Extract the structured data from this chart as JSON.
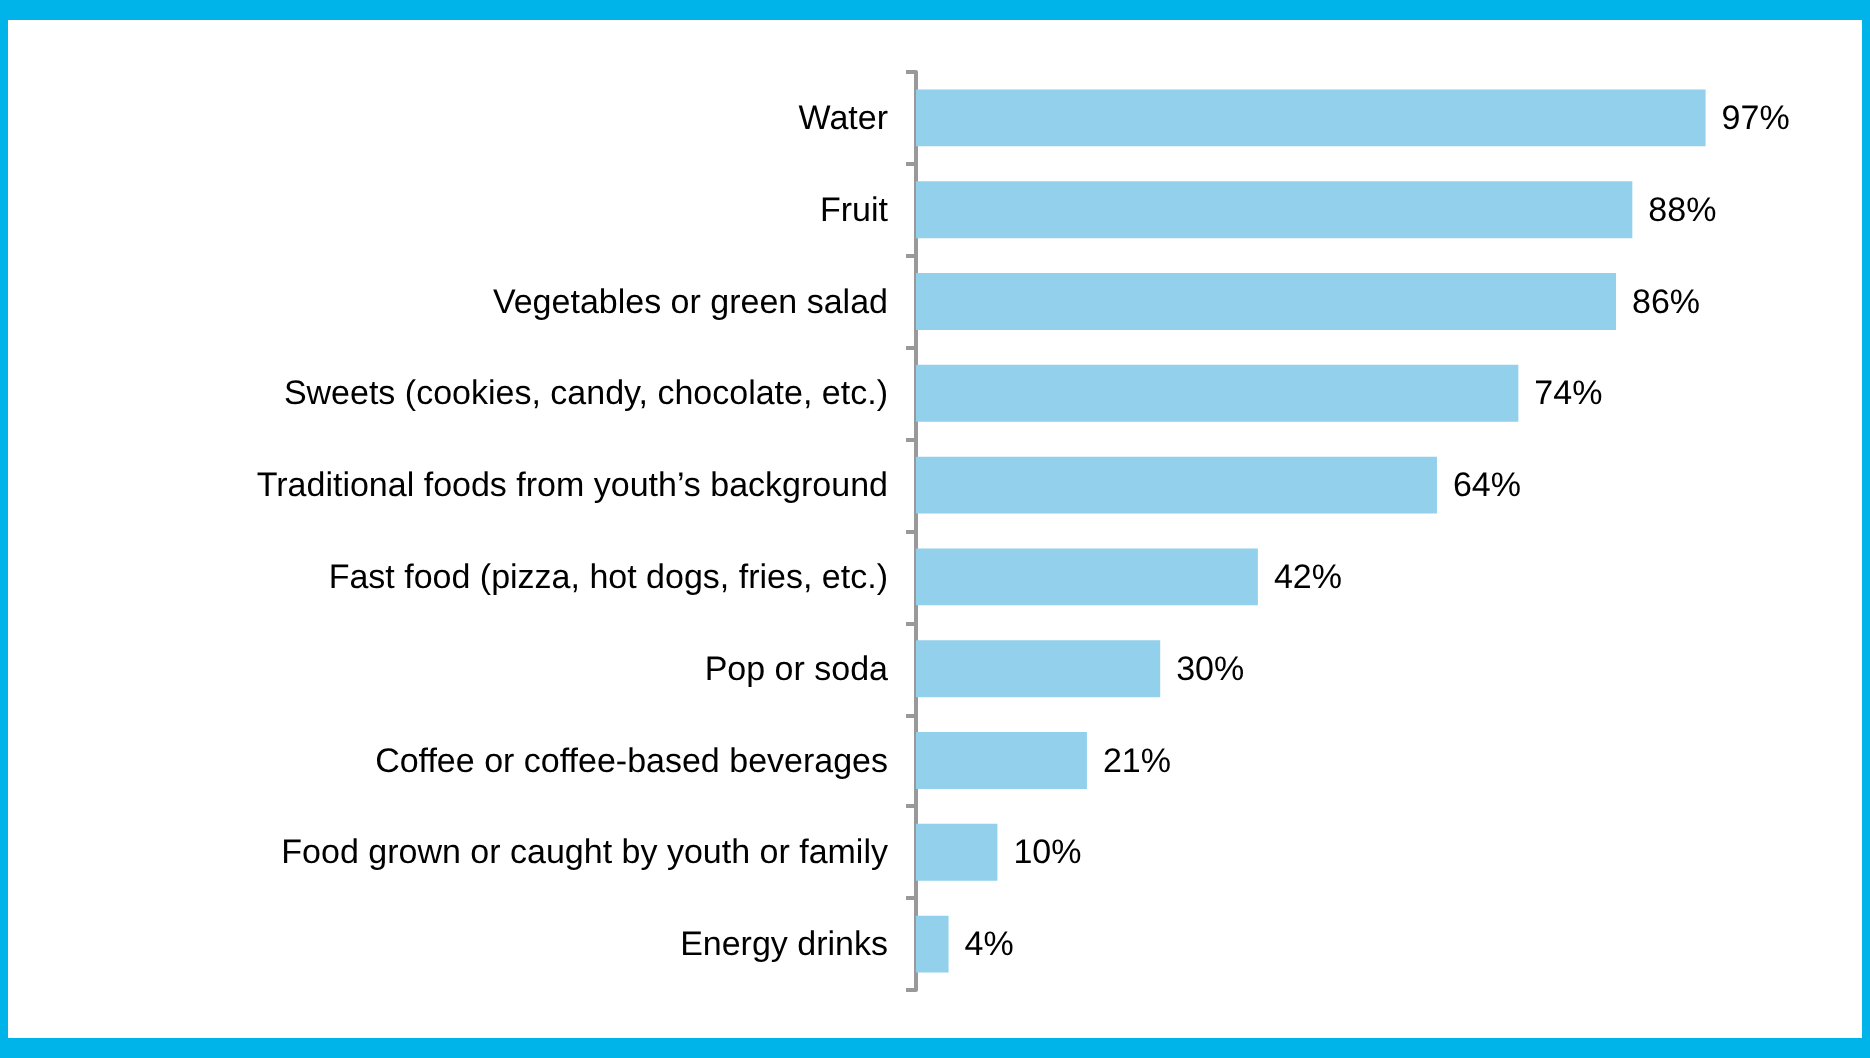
{
  "chart_data": {
    "type": "bar",
    "orientation": "horizontal",
    "categories": [
      "Water",
      "Fruit",
      "Vegetables or green salad",
      "Sweets (cookies, candy, chocolate, etc.)",
      "Traditional foods from youth’s background",
      "Fast food (pizza, hot dogs, fries, etc.)",
      "Pop or soda",
      "Coffee or coffee-based beverages",
      "Food grown or caught by youth or family",
      "Energy drinks"
    ],
    "values": [
      97,
      88,
      86,
      74,
      64,
      42,
      30,
      21,
      10,
      4
    ],
    "value_labels": [
      "97%",
      "88%",
      "86%",
      "74%",
      "64%",
      "42%",
      "30%",
      "21%",
      "10%",
      "4%"
    ],
    "color": "#92d0ec",
    "tick_labels": "y"
  }
}
